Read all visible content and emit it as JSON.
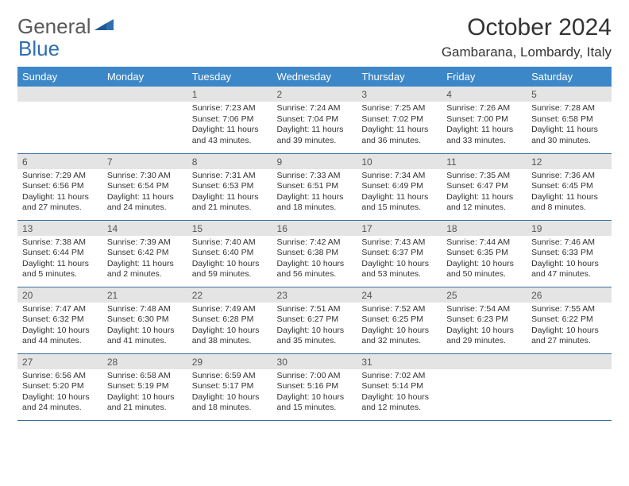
{
  "logo": {
    "part1": "General",
    "part2": "Blue"
  },
  "title": "October 2024",
  "location": "Gambarana, Lombardy, Italy",
  "colors": {
    "header_bg": "#3b87c8",
    "header_text": "#ffffff",
    "daynum_bg": "#e4e4e4",
    "border": "#3b6fa0",
    "logo_gray": "#5a5a5a",
    "logo_blue": "#2f6fb0",
    "body_text": "#333333"
  },
  "dayNames": [
    "Sunday",
    "Monday",
    "Tuesday",
    "Wednesday",
    "Thursday",
    "Friday",
    "Saturday"
  ],
  "weeks": [
    [
      null,
      null,
      {
        "n": "1",
        "sunrise": "7:23 AM",
        "sunset": "7:06 PM",
        "daylight": "11 hours and 43 minutes."
      },
      {
        "n": "2",
        "sunrise": "7:24 AM",
        "sunset": "7:04 PM",
        "daylight": "11 hours and 39 minutes."
      },
      {
        "n": "3",
        "sunrise": "7:25 AM",
        "sunset": "7:02 PM",
        "daylight": "11 hours and 36 minutes."
      },
      {
        "n": "4",
        "sunrise": "7:26 AM",
        "sunset": "7:00 PM",
        "daylight": "11 hours and 33 minutes."
      },
      {
        "n": "5",
        "sunrise": "7:28 AM",
        "sunset": "6:58 PM",
        "daylight": "11 hours and 30 minutes."
      }
    ],
    [
      {
        "n": "6",
        "sunrise": "7:29 AM",
        "sunset": "6:56 PM",
        "daylight": "11 hours and 27 minutes."
      },
      {
        "n": "7",
        "sunrise": "7:30 AM",
        "sunset": "6:54 PM",
        "daylight": "11 hours and 24 minutes."
      },
      {
        "n": "8",
        "sunrise": "7:31 AM",
        "sunset": "6:53 PM",
        "daylight": "11 hours and 21 minutes."
      },
      {
        "n": "9",
        "sunrise": "7:33 AM",
        "sunset": "6:51 PM",
        "daylight": "11 hours and 18 minutes."
      },
      {
        "n": "10",
        "sunrise": "7:34 AM",
        "sunset": "6:49 PM",
        "daylight": "11 hours and 15 minutes."
      },
      {
        "n": "11",
        "sunrise": "7:35 AM",
        "sunset": "6:47 PM",
        "daylight": "11 hours and 12 minutes."
      },
      {
        "n": "12",
        "sunrise": "7:36 AM",
        "sunset": "6:45 PM",
        "daylight": "11 hours and 8 minutes."
      }
    ],
    [
      {
        "n": "13",
        "sunrise": "7:38 AM",
        "sunset": "6:44 PM",
        "daylight": "11 hours and 5 minutes."
      },
      {
        "n": "14",
        "sunrise": "7:39 AM",
        "sunset": "6:42 PM",
        "daylight": "11 hours and 2 minutes."
      },
      {
        "n": "15",
        "sunrise": "7:40 AM",
        "sunset": "6:40 PM",
        "daylight": "10 hours and 59 minutes."
      },
      {
        "n": "16",
        "sunrise": "7:42 AM",
        "sunset": "6:38 PM",
        "daylight": "10 hours and 56 minutes."
      },
      {
        "n": "17",
        "sunrise": "7:43 AM",
        "sunset": "6:37 PM",
        "daylight": "10 hours and 53 minutes."
      },
      {
        "n": "18",
        "sunrise": "7:44 AM",
        "sunset": "6:35 PM",
        "daylight": "10 hours and 50 minutes."
      },
      {
        "n": "19",
        "sunrise": "7:46 AM",
        "sunset": "6:33 PM",
        "daylight": "10 hours and 47 minutes."
      }
    ],
    [
      {
        "n": "20",
        "sunrise": "7:47 AM",
        "sunset": "6:32 PM",
        "daylight": "10 hours and 44 minutes."
      },
      {
        "n": "21",
        "sunrise": "7:48 AM",
        "sunset": "6:30 PM",
        "daylight": "10 hours and 41 minutes."
      },
      {
        "n": "22",
        "sunrise": "7:49 AM",
        "sunset": "6:28 PM",
        "daylight": "10 hours and 38 minutes."
      },
      {
        "n": "23",
        "sunrise": "7:51 AM",
        "sunset": "6:27 PM",
        "daylight": "10 hours and 35 minutes."
      },
      {
        "n": "24",
        "sunrise": "7:52 AM",
        "sunset": "6:25 PM",
        "daylight": "10 hours and 32 minutes."
      },
      {
        "n": "25",
        "sunrise": "7:54 AM",
        "sunset": "6:23 PM",
        "daylight": "10 hours and 29 minutes."
      },
      {
        "n": "26",
        "sunrise": "7:55 AM",
        "sunset": "6:22 PM",
        "daylight": "10 hours and 27 minutes."
      }
    ],
    [
      {
        "n": "27",
        "sunrise": "6:56 AM",
        "sunset": "5:20 PM",
        "daylight": "10 hours and 24 minutes."
      },
      {
        "n": "28",
        "sunrise": "6:58 AM",
        "sunset": "5:19 PM",
        "daylight": "10 hours and 21 minutes."
      },
      {
        "n": "29",
        "sunrise": "6:59 AM",
        "sunset": "5:17 PM",
        "daylight": "10 hours and 18 minutes."
      },
      {
        "n": "30",
        "sunrise": "7:00 AM",
        "sunset": "5:16 PM",
        "daylight": "10 hours and 15 minutes."
      },
      {
        "n": "31",
        "sunrise": "7:02 AM",
        "sunset": "5:14 PM",
        "daylight": "10 hours and 12 minutes."
      },
      null,
      null
    ]
  ],
  "labels": {
    "sunrise": "Sunrise:",
    "sunset": "Sunset:",
    "daylight": "Daylight:"
  }
}
